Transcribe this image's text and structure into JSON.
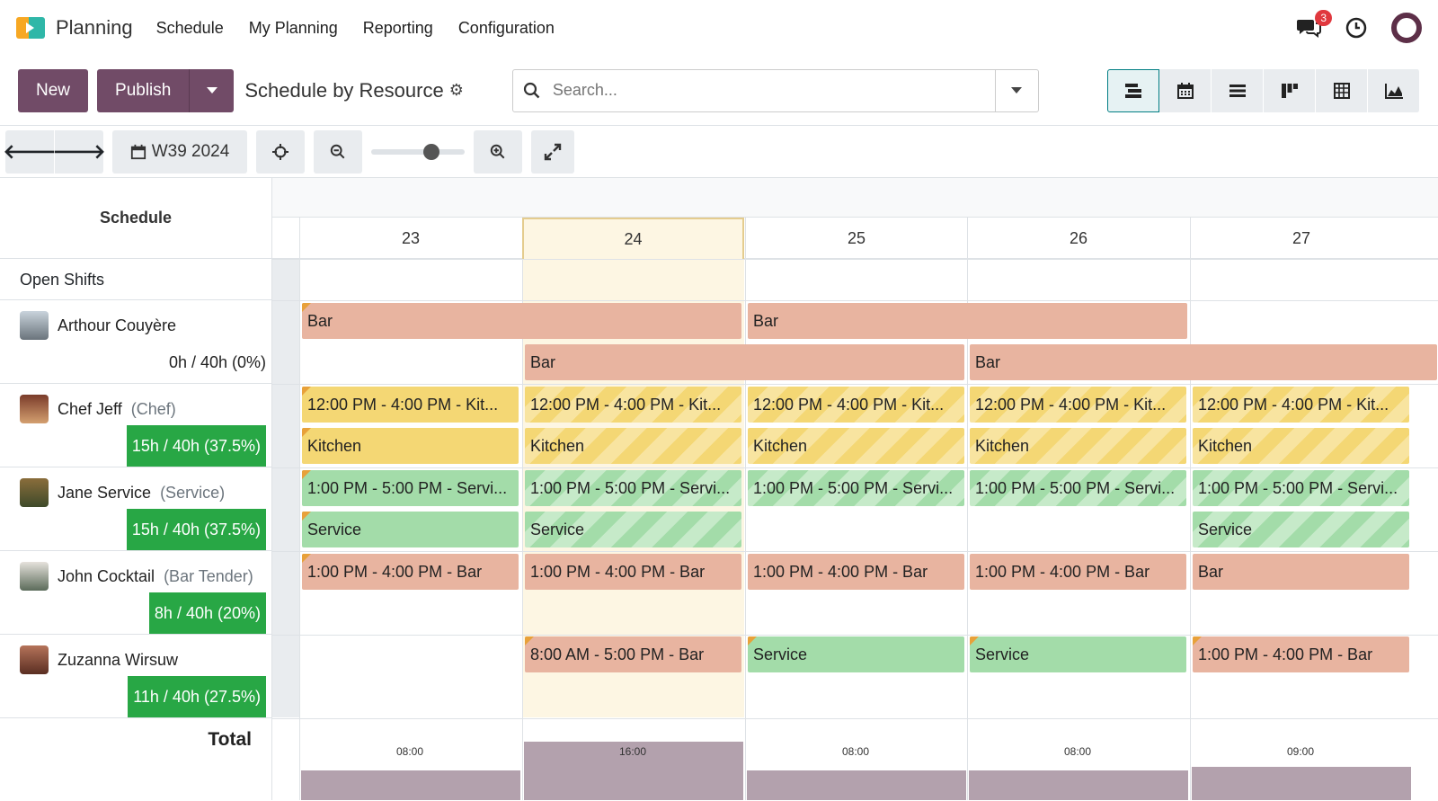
{
  "nav": {
    "app_name": "Planning",
    "menu": [
      "Schedule",
      "My Planning",
      "Reporting",
      "Configuration"
    ],
    "notification_count": "3"
  },
  "controls": {
    "new_label": "New",
    "publish_label": "Publish",
    "view_title": "Schedule by Resource",
    "search_placeholder": "Search..."
  },
  "toolbar": {
    "week_label": "W39 2024",
    "zoom_level": 0.6
  },
  "gantt": {
    "header_label": "Schedule",
    "days": [
      "23",
      "24",
      "25",
      "26",
      "27"
    ],
    "today": "24",
    "open_shifts_label": "Open Shifts",
    "total_label": "Total",
    "resources": [
      {
        "name": "Arthour Couyère",
        "role": "",
        "hours": "0h / 40h (0%)"
      },
      {
        "name": "Chef Jeff",
        "role": "(Chef)",
        "hours": "15h / 40h (37.5%)"
      },
      {
        "name": "Jane Service",
        "role": "(Service)",
        "hours": "15h / 40h (37.5%)"
      },
      {
        "name": "John Cocktail",
        "role": "(Bar Tender)",
        "hours": "8h / 40h (20%)"
      },
      {
        "name": "Zuzanna Wirsuw",
        "role": "",
        "hours": "11h / 40h (27.5%)"
      }
    ],
    "shifts": {
      "arthour_1": "Bar",
      "arthour_2": "Bar",
      "arthour_3": "Bar",
      "arthour_4": "Bar",
      "jeff_top": [
        "12:00 PM - 4:00 PM - Kit...",
        "12:00 PM - 4:00 PM - Kit...",
        "12:00 PM - 4:00 PM - Kit...",
        "12:00 PM - 4:00 PM - Kit...",
        "12:00 PM - 4:00 PM - Kit..."
      ],
      "jeff_bottom": [
        "Kitchen",
        "Kitchen",
        "Kitchen",
        "Kitchen",
        "Kitchen"
      ],
      "jane_top": [
        "1:00 PM - 5:00 PM - Servi...",
        "1:00 PM - 5:00 PM - Servi...",
        "1:00 PM - 5:00 PM - Servi...",
        "1:00 PM - 5:00 PM - Servi...",
        "1:00 PM - 5:00 PM - Servi..."
      ],
      "jane_bottom": [
        "Service",
        "Service",
        "Service"
      ],
      "john": [
        "1:00 PM - 4:00 PM - Bar",
        "1:00 PM - 4:00 PM - Bar",
        "1:00 PM - 4:00 PM - Bar",
        "1:00 PM - 4:00 PM - Bar",
        "Bar"
      ],
      "zuzanna": [
        "8:00 AM - 5:00 PM - Bar",
        "Service",
        "Service",
        "1:00 PM - 4:00 PM - Bar"
      ]
    },
    "totals": [
      {
        "label": "08:00",
        "hours": 8
      },
      {
        "label": "16:00",
        "hours": 16
      },
      {
        "label": "08:00",
        "hours": 8
      },
      {
        "label": "08:00",
        "hours": 8
      },
      {
        "label": "09:00",
        "hours": 9
      }
    ]
  },
  "colors": {
    "primary": "#714b67",
    "bar": "#e8b4a0",
    "kitchen": "#f4d774",
    "service": "#a3dca9",
    "hours_badge": "#28a745"
  }
}
